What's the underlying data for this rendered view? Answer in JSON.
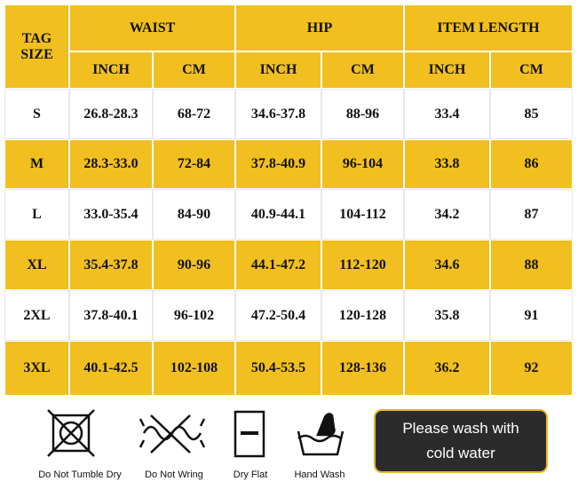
{
  "table": {
    "header": {
      "tag_size": "TAG SIZE",
      "groups": [
        "WAIST",
        "HIP",
        "ITEM LENGTH"
      ],
      "units": [
        "INCH",
        "CM",
        "INCH",
        "CM",
        "INCH",
        "CM"
      ]
    },
    "rows": [
      [
        "S",
        "26.8-28.3",
        "68-72",
        "34.6-37.8",
        "88-96",
        "33.4",
        "85"
      ],
      [
        "M",
        "28.3-33.0",
        "72-84",
        "37.8-40.9",
        "96-104",
        "33.8",
        "86"
      ],
      [
        "L",
        "33.0-35.4",
        "84-90",
        "40.9-44.1",
        "104-112",
        "34.2",
        "87"
      ],
      [
        "XL",
        "35.4-37.8",
        "90-96",
        "44.1-47.2",
        "112-120",
        "34.6",
        "88"
      ],
      [
        "2XL",
        "37.8-40.1",
        "96-102",
        "47.2-50.4",
        "120-128",
        "35.8",
        "91"
      ],
      [
        "3XL",
        "40.1-42.5",
        "102-108",
        "50.4-53.5",
        "128-136",
        "36.2",
        "92"
      ]
    ]
  },
  "care": {
    "icons": [
      "Do Not Tumble Dry",
      "Do Not Wring",
      "Dry Flat",
      "Hand Wash"
    ],
    "note": [
      "Please wash with",
      "cold water"
    ]
  }
}
